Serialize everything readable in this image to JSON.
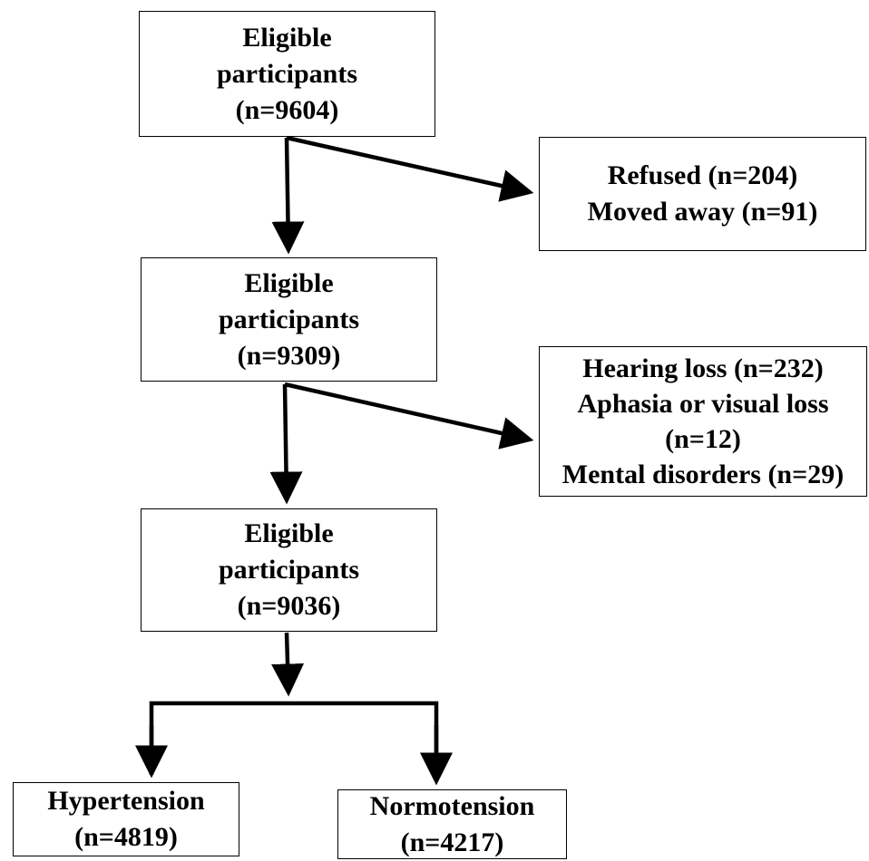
{
  "boxes": {
    "eligible_1": [
      "Eligible",
      "participants",
      "(n=9604)"
    ],
    "excluded_1": [
      "Refused (n=204)",
      "Moved away (n=91)"
    ],
    "eligible_2": [
      "Eligible",
      "participants",
      "(n=9309)"
    ],
    "excluded_2": [
      "Hearing loss (n=232)",
      "Aphasia or visual loss",
      "(n=12)",
      "Mental disorders (n=29)"
    ],
    "eligible_3": [
      "Eligible",
      "participants",
      "(n=9036)"
    ],
    "hypertension": [
      "Hypertension",
      "(n=4819)"
    ],
    "normotension": [
      "Normotension",
      "(n=4217)"
    ]
  },
  "colors": {
    "line": "#000000",
    "border": "#000000",
    "text": "#000000",
    "background": "#ffffff"
  }
}
